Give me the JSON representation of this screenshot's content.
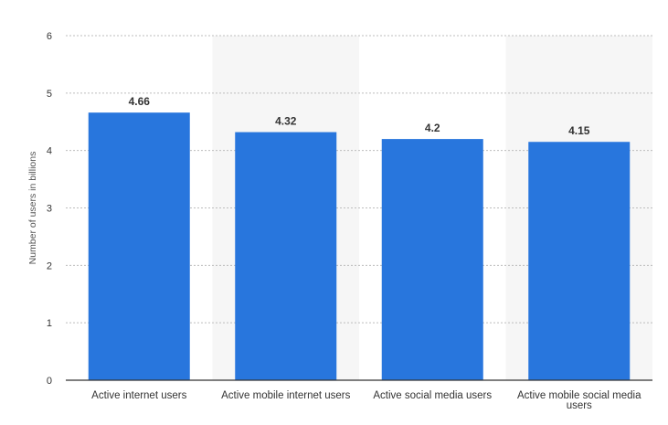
{
  "chart_data": {
    "type": "bar",
    "categories": [
      "Active internet users",
      "Active mobile internet users",
      "Active social media users",
      "Active mobile social media users"
    ],
    "values": [
      4.66,
      4.32,
      4.2,
      4.15
    ],
    "value_labels": [
      "4.66",
      "4.32",
      "4.2",
      "4.15"
    ],
    "xlabel": "",
    "ylabel": "Number of users in billions",
    "ylim": [
      0,
      6
    ],
    "yticks": [
      0,
      1,
      2,
      3,
      4,
      5,
      6
    ],
    "grid": true,
    "bar_color": "#2876dd",
    "band_color": "#f6f6f6"
  }
}
